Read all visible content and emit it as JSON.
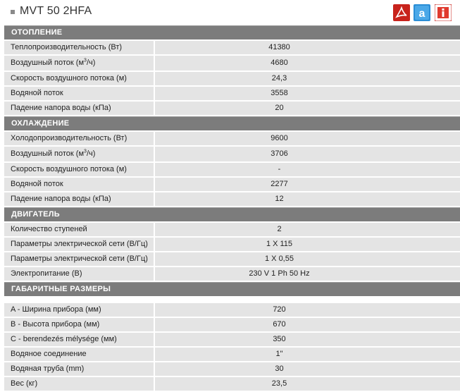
{
  "title": "MVT 50 2HFA",
  "icons": [
    "pdf-icon",
    "autocad-icon",
    "info-icon"
  ],
  "colors": {
    "section_bg": "#7c7c7c",
    "row_bg": "#e4e4e4",
    "pdf_red": "#c8231c",
    "cad_blue": "#2b8ed6"
  },
  "sections": [
    {
      "header": "ОТОПЛЕНИЕ",
      "rows": [
        {
          "label": "Теплопроизводительность (Вт)",
          "value": "41380"
        },
        {
          "label_pre": "Воздушный поток (м",
          "label_sup": "3",
          "label_post": "/ч)",
          "value": "4680"
        },
        {
          "label": "Скорость воздушного потока (м)",
          "value": "24,3"
        },
        {
          "label": "Водяной поток",
          "value": "3558"
        },
        {
          "label": "Падение напора воды (кПа)",
          "value": "20"
        }
      ]
    },
    {
      "header": "ОХЛАЖДЕНИЕ",
      "rows": [
        {
          "label": "Холодопроизводительность (Вт)",
          "value": "9600"
        },
        {
          "label_pre": "Воздушный поток (м",
          "label_sup": "3",
          "label_post": "/ч)",
          "value": "3706"
        },
        {
          "label": "Скорость воздушного потока (м)",
          "value": "-"
        },
        {
          "label": "Водяной поток",
          "value": "2277"
        },
        {
          "label": "Падение напора воды (кПа)",
          "value": "12"
        }
      ]
    },
    {
      "header": "ДВИГАТЕЛЬ",
      "rows": [
        {
          "label": "Количество ступеней",
          "value": "2"
        },
        {
          "label": "Параметры электрической сети (В/Гц)",
          "value": "1 X 115"
        },
        {
          "label": "Параметры электрической сети (В/Гц)",
          "value": "1 X 0,55"
        },
        {
          "label": "Электропитание (В)",
          "value": "230 V 1 Ph 50 Hz"
        }
      ]
    },
    {
      "header": "ГАБАРИТНЫЕ РАЗМЕРЫ",
      "rows": [
        {
          "label": "A - Ширина прибора (мм)",
          "value": "720"
        },
        {
          "label": "B - Высота прибора (мм)",
          "value": "670"
        },
        {
          "label": "C - berendezés mélysége (мм)",
          "value": "350"
        },
        {
          "label": "Водяное соединение",
          "value": "1\""
        },
        {
          "label": "Водяная труба (mm)",
          "value": "30"
        },
        {
          "label": "Вес (кг)",
          "value": "23,5"
        }
      ]
    }
  ]
}
